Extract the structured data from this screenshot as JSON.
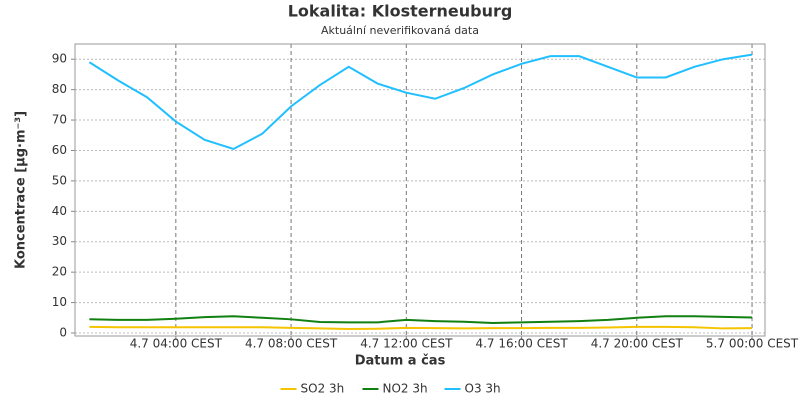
{
  "chart_data": {
    "type": "line",
    "title": "Lokalita: Klosterneuburg",
    "subtitle": "Aktuální neverifikovaná data",
    "x_label": "Datum a čas",
    "y_label": "Koncentrace [µg·m⁻³]",
    "x": [
      "4.7 01:00 CEST",
      "4.7 02:00 CEST",
      "4.7 03:00 CEST",
      "4.7 04:00 CEST",
      "4.7 05:00 CEST",
      "4.7 06:00 CEST",
      "4.7 07:00 CEST",
      "4.7 08:00 CEST",
      "4.7 09:00 CEST",
      "4.7 10:00 CEST",
      "4.7 11:00 CEST",
      "4.7 12:00 CEST",
      "4.7 13:00 CEST",
      "4.7 14:00 CEST",
      "4.7 15:00 CEST",
      "4.7 16:00 CEST",
      "4.7 17:00 CEST",
      "4.7 18:00 CEST",
      "4.7 19:00 CEST",
      "4.7 20:00 CEST",
      "4.7 21:00 CEST",
      "4.7 22:00 CEST",
      "4.7 23:00 CEST",
      "5.7 00:00 CEST"
    ],
    "series": [
      {
        "name": "SO2 3h",
        "color": "#f5c400",
        "values": [
          2,
          1.9,
          1.9,
          1.9,
          1.9,
          1.9,
          1.9,
          1.7,
          1.5,
          1.3,
          1.4,
          1.7,
          1.6,
          1.5,
          1.6,
          1.6,
          1.7,
          1.7,
          1.8,
          2,
          2,
          1.9,
          1.5,
          1.6
        ]
      },
      {
        "name": "NO2 3h",
        "color": "#118011",
        "values": [
          4.5,
          4.3,
          4.3,
          4.7,
          5.2,
          5.5,
          5,
          4.5,
          3.6,
          3.5,
          3.5,
          4.3,
          3.9,
          3.7,
          3.3,
          3.5,
          3.7,
          3.9,
          4.3,
          5,
          5.5,
          5.5,
          5.3,
          5.1
        ]
      },
      {
        "name": "O3 3h",
        "color": "#20bfff",
        "values": [
          89,
          83,
          77.5,
          69.5,
          63.5,
          60.5,
          65.5,
          74.5,
          81.5,
          87.5,
          82,
          79,
          77,
          80.5,
          85,
          88.5,
          91,
          91,
          87.5,
          84,
          84,
          87.5,
          90,
          91.5
        ]
      }
    ],
    "xlim": [
      "4.7 00:30 CEST",
      "5.7 00:27 CEST"
    ],
    "xticks": [
      "4.7 04:00 CEST",
      "4.7 08:00 CEST",
      "4.7 12:00 CEST",
      "4.7 16:00 CEST",
      "4.7 20:00 CEST",
      "5.7 00:00 CEST"
    ],
    "ylim": [
      0,
      95
    ],
    "yticks": [
      0,
      10,
      20,
      30,
      40,
      50,
      60,
      70,
      80,
      90
    ],
    "grid": true,
    "legend": "bottom"
  }
}
